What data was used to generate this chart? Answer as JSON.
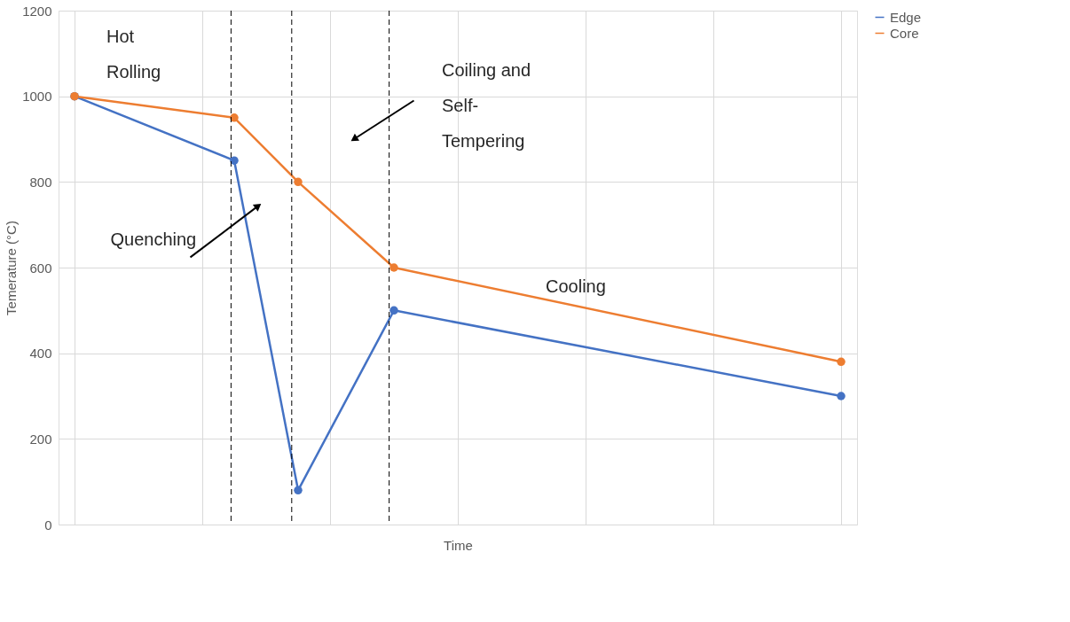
{
  "chart_data": {
    "type": "line",
    "xlabel": "Time",
    "ylabel": "Temerature (°C)",
    "categories": [
      null,
      null,
      null,
      null,
      null,
      null,
      null,
      null,
      null,
      null,
      null,
      null,
      null,
      null,
      null,
      null,
      null,
      null,
      null,
      null,
      null,
      null,
      null,
      null,
      null
    ],
    "series": [
      {
        "name": "Edge",
        "color": "#4472c4",
        "values": [
          1000,
          null,
          null,
          null,
          null,
          850,
          null,
          80,
          null,
          null,
          500,
          null,
          null,
          null,
          null,
          null,
          null,
          null,
          null,
          null,
          null,
          null,
          null,
          null,
          300
        ]
      },
      {
        "name": "Core",
        "color": "#ed7d31",
        "values": [
          1000,
          null,
          null,
          null,
          null,
          950,
          null,
          800,
          null,
          null,
          600,
          null,
          null,
          null,
          null,
          null,
          null,
          null,
          null,
          null,
          null,
          null,
          null,
          null,
          380
        ]
      }
    ],
    "ylim": [
      0,
      1200
    ],
    "yticks": [
      0,
      200,
      400,
      600,
      800,
      1000,
      1200
    ],
    "grid": true,
    "legend": "right",
    "marker": "circle",
    "line_style": "solid",
    "annotations": [
      "Hot\nRolling",
      "Coiling and\nSelf-\nTempering",
      "Quenching",
      "Cooling"
    ]
  }
}
